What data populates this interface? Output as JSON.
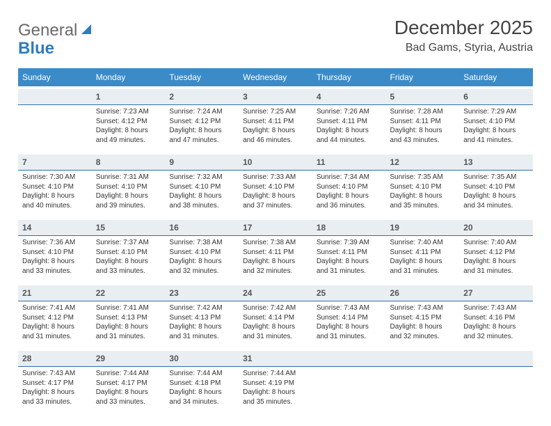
{
  "brand": {
    "name_gray": "General",
    "name_blue": "Blue",
    "blue_color": "#2f7bbf"
  },
  "title": "December 2025",
  "location": "Bad Gams, Styria, Austria",
  "colors": {
    "header_bg": "#3b8bc8",
    "header_text": "#ffffff",
    "daynum_bg": "#e9eef2",
    "daynum_border": "#2f6ea8",
    "text": "#333333"
  },
  "weekdays": [
    "Sunday",
    "Monday",
    "Tuesday",
    "Wednesday",
    "Thursday",
    "Friday",
    "Saturday"
  ],
  "weeks": [
    [
      null,
      {
        "n": "1",
        "sr": "Sunrise: 7:23 AM",
        "ss": "Sunset: 4:12 PM",
        "d1": "Daylight: 8 hours",
        "d2": "and 49 minutes."
      },
      {
        "n": "2",
        "sr": "Sunrise: 7:24 AM",
        "ss": "Sunset: 4:12 PM",
        "d1": "Daylight: 8 hours",
        "d2": "and 47 minutes."
      },
      {
        "n": "3",
        "sr": "Sunrise: 7:25 AM",
        "ss": "Sunset: 4:11 PM",
        "d1": "Daylight: 8 hours",
        "d2": "and 46 minutes."
      },
      {
        "n": "4",
        "sr": "Sunrise: 7:26 AM",
        "ss": "Sunset: 4:11 PM",
        "d1": "Daylight: 8 hours",
        "d2": "and 44 minutes."
      },
      {
        "n": "5",
        "sr": "Sunrise: 7:28 AM",
        "ss": "Sunset: 4:11 PM",
        "d1": "Daylight: 8 hours",
        "d2": "and 43 minutes."
      },
      {
        "n": "6",
        "sr": "Sunrise: 7:29 AM",
        "ss": "Sunset: 4:10 PM",
        "d1": "Daylight: 8 hours",
        "d2": "and 41 minutes."
      }
    ],
    [
      {
        "n": "7",
        "sr": "Sunrise: 7:30 AM",
        "ss": "Sunset: 4:10 PM",
        "d1": "Daylight: 8 hours",
        "d2": "and 40 minutes."
      },
      {
        "n": "8",
        "sr": "Sunrise: 7:31 AM",
        "ss": "Sunset: 4:10 PM",
        "d1": "Daylight: 8 hours",
        "d2": "and 39 minutes."
      },
      {
        "n": "9",
        "sr": "Sunrise: 7:32 AM",
        "ss": "Sunset: 4:10 PM",
        "d1": "Daylight: 8 hours",
        "d2": "and 38 minutes."
      },
      {
        "n": "10",
        "sr": "Sunrise: 7:33 AM",
        "ss": "Sunset: 4:10 PM",
        "d1": "Daylight: 8 hours",
        "d2": "and 37 minutes."
      },
      {
        "n": "11",
        "sr": "Sunrise: 7:34 AM",
        "ss": "Sunset: 4:10 PM",
        "d1": "Daylight: 8 hours",
        "d2": "and 36 minutes."
      },
      {
        "n": "12",
        "sr": "Sunrise: 7:35 AM",
        "ss": "Sunset: 4:10 PM",
        "d1": "Daylight: 8 hours",
        "d2": "and 35 minutes."
      },
      {
        "n": "13",
        "sr": "Sunrise: 7:35 AM",
        "ss": "Sunset: 4:10 PM",
        "d1": "Daylight: 8 hours",
        "d2": "and 34 minutes."
      }
    ],
    [
      {
        "n": "14",
        "sr": "Sunrise: 7:36 AM",
        "ss": "Sunset: 4:10 PM",
        "d1": "Daylight: 8 hours",
        "d2": "and 33 minutes."
      },
      {
        "n": "15",
        "sr": "Sunrise: 7:37 AM",
        "ss": "Sunset: 4:10 PM",
        "d1": "Daylight: 8 hours",
        "d2": "and 33 minutes."
      },
      {
        "n": "16",
        "sr": "Sunrise: 7:38 AM",
        "ss": "Sunset: 4:10 PM",
        "d1": "Daylight: 8 hours",
        "d2": "and 32 minutes."
      },
      {
        "n": "17",
        "sr": "Sunrise: 7:38 AM",
        "ss": "Sunset: 4:11 PM",
        "d1": "Daylight: 8 hours",
        "d2": "and 32 minutes."
      },
      {
        "n": "18",
        "sr": "Sunrise: 7:39 AM",
        "ss": "Sunset: 4:11 PM",
        "d1": "Daylight: 8 hours",
        "d2": "and 31 minutes."
      },
      {
        "n": "19",
        "sr": "Sunrise: 7:40 AM",
        "ss": "Sunset: 4:11 PM",
        "d1": "Daylight: 8 hours",
        "d2": "and 31 minutes."
      },
      {
        "n": "20",
        "sr": "Sunrise: 7:40 AM",
        "ss": "Sunset: 4:12 PM",
        "d1": "Daylight: 8 hours",
        "d2": "and 31 minutes."
      }
    ],
    [
      {
        "n": "21",
        "sr": "Sunrise: 7:41 AM",
        "ss": "Sunset: 4:12 PM",
        "d1": "Daylight: 8 hours",
        "d2": "and 31 minutes."
      },
      {
        "n": "22",
        "sr": "Sunrise: 7:41 AM",
        "ss": "Sunset: 4:13 PM",
        "d1": "Daylight: 8 hours",
        "d2": "and 31 minutes."
      },
      {
        "n": "23",
        "sr": "Sunrise: 7:42 AM",
        "ss": "Sunset: 4:13 PM",
        "d1": "Daylight: 8 hours",
        "d2": "and 31 minutes."
      },
      {
        "n": "24",
        "sr": "Sunrise: 7:42 AM",
        "ss": "Sunset: 4:14 PM",
        "d1": "Daylight: 8 hours",
        "d2": "and 31 minutes."
      },
      {
        "n": "25",
        "sr": "Sunrise: 7:43 AM",
        "ss": "Sunset: 4:14 PM",
        "d1": "Daylight: 8 hours",
        "d2": "and 31 minutes."
      },
      {
        "n": "26",
        "sr": "Sunrise: 7:43 AM",
        "ss": "Sunset: 4:15 PM",
        "d1": "Daylight: 8 hours",
        "d2": "and 32 minutes."
      },
      {
        "n": "27",
        "sr": "Sunrise: 7:43 AM",
        "ss": "Sunset: 4:16 PM",
        "d1": "Daylight: 8 hours",
        "d2": "and 32 minutes."
      }
    ],
    [
      {
        "n": "28",
        "sr": "Sunrise: 7:43 AM",
        "ss": "Sunset: 4:17 PM",
        "d1": "Daylight: 8 hours",
        "d2": "and 33 minutes."
      },
      {
        "n": "29",
        "sr": "Sunrise: 7:44 AM",
        "ss": "Sunset: 4:17 PM",
        "d1": "Daylight: 8 hours",
        "d2": "and 33 minutes."
      },
      {
        "n": "30",
        "sr": "Sunrise: 7:44 AM",
        "ss": "Sunset: 4:18 PM",
        "d1": "Daylight: 8 hours",
        "d2": "and 34 minutes."
      },
      {
        "n": "31",
        "sr": "Sunrise: 7:44 AM",
        "ss": "Sunset: 4:19 PM",
        "d1": "Daylight: 8 hours",
        "d2": "and 35 minutes."
      },
      null,
      null,
      null
    ]
  ]
}
